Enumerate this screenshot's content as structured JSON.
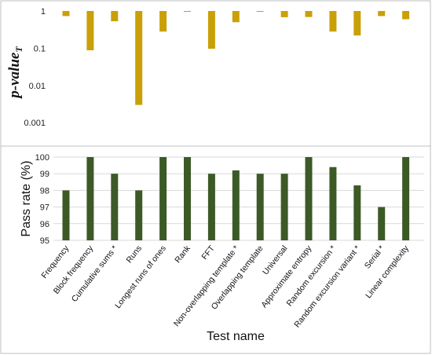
{
  "colors": {
    "top_bar": "#c9a008",
    "bottom_bar": "#3c5a26",
    "grid": "#d9d9d9",
    "frame": "#bfbfbf"
  },
  "chart_data": [
    {
      "type": "bar",
      "panel": "top",
      "ylabel_main": "p-value",
      "ylabel_sub": "T",
      "yscale": "log",
      "ylim": [
        0.0003,
        1
      ],
      "baseline": 1,
      "bars_hang_from_top": true,
      "grid": false,
      "yticks": [
        {
          "value": 1,
          "label": "1"
        },
        {
          "value": 0.1,
          "label": "0.1"
        },
        {
          "value": 0.01,
          "label": "0.01"
        },
        {
          "value": 0.001,
          "label": "0.001"
        }
      ],
      "categories": [
        "Frequency",
        "Block frequency",
        "Cumulative sums *",
        "Runs",
        "Longest runs of ones",
        "Rank",
        "FFT",
        "Non-overlapping template *",
        "Overlapping template",
        "Universal",
        "Approximate entropy",
        "Random excursion *",
        "Random excursion variant *",
        "Serial *",
        "Linear complexity"
      ],
      "values": [
        0.73,
        0.088,
        0.53,
        0.003,
        0.28,
        0.96,
        0.097,
        0.5,
        0.96,
        0.68,
        0.69,
        0.28,
        0.22,
        0.73,
        0.6
      ]
    },
    {
      "type": "bar",
      "panel": "bottom",
      "ylabel": "Pass rate (%)",
      "xlabel": "Test name",
      "ylim": [
        95,
        100
      ],
      "grid": true,
      "yticks": [
        {
          "value": 95,
          "label": "95"
        },
        {
          "value": 96,
          "label": "96"
        },
        {
          "value": 97,
          "label": "97"
        },
        {
          "value": 98,
          "label": "98"
        },
        {
          "value": 99,
          "label": "99"
        },
        {
          "value": 100,
          "label": "100"
        }
      ],
      "categories": [
        "Frequency",
        "Block frequency",
        "Cumulative sums *",
        "Runs",
        "Longest runs of ones",
        "Rank",
        "FFT",
        "Non-overlapping template *",
        "Overlapping template",
        "Universal",
        "Approximate entropy",
        "Random excursion *",
        "Random excursion variant *",
        "Serial *",
        "Linear complexity"
      ],
      "values": [
        98.0,
        100.0,
        99.0,
        98.0,
        100.0,
        100.0,
        99.0,
        99.2,
        99.0,
        99.0,
        100.0,
        99.4,
        98.3,
        97.0,
        100.0
      ]
    }
  ]
}
